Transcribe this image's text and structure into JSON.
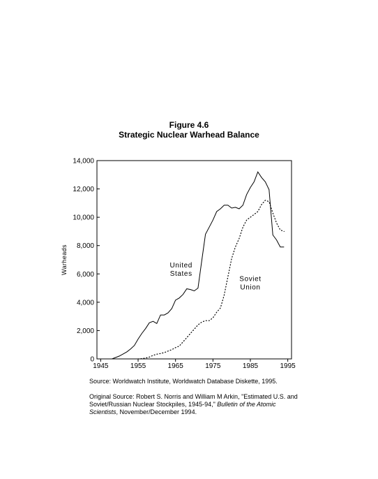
{
  "title": "Figure 4.6",
  "subtitle": "Strategic Nuclear Warhead Balance",
  "source": "Source: Worldwatch Institute, Worldwatch Database Diskette, 1995.",
  "original_source": {
    "prefix": "Original Source: Robert S. Norris and William M Arkin, \"Estimated U.S. and Soviet/Russian Nuclear Stockpiles, 1945-94,\" ",
    "journal": "Bulletin of the Atomic Scientists",
    "suffix": ", November/December 1994."
  },
  "chart_data": {
    "type": "line",
    "title": "Strategic Nuclear Warhead Balance",
    "xlabel": "",
    "ylabel": "Warheads",
    "xlim": [
      1944,
      1996
    ],
    "ylim": [
      0,
      14000
    ],
    "x_ticks": [
      1945,
      1955,
      1965,
      1975,
      1985,
      1995
    ],
    "y_ticks": [
      0,
      2000,
      4000,
      6000,
      8000,
      10000,
      12000,
      14000
    ],
    "y_tick_labels": [
      "0",
      "2,000",
      "4,000",
      "6,000",
      "8,000",
      "10,000",
      "12,000",
      "14,000"
    ],
    "grid": false,
    "legend": "none",
    "series": [
      {
        "name": "United States",
        "label_lines": [
          "United",
          "States"
        ],
        "style": "solid",
        "label_at": [
          1966.5,
          6450
        ],
        "x": [
          1948,
          1949,
          1950,
          1951,
          1952,
          1953,
          1954,
          1955,
          1956,
          1957,
          1958,
          1959,
          1960,
          1961,
          1962,
          1963,
          1964,
          1965,
          1966,
          1967,
          1968,
          1969,
          1970,
          1971,
          1972,
          1973,
          1974,
          1975,
          1976,
          1977,
          1978,
          1979,
          1980,
          1981,
          1982,
          1983,
          1984,
          1985,
          1986,
          1987,
          1988,
          1989,
          1990,
          1991,
          1992,
          1993,
          1994
        ],
        "values": [
          0,
          100,
          200,
          350,
          500,
          700,
          950,
          1400,
          1800,
          2150,
          2550,
          2650,
          2500,
          3100,
          3100,
          3250,
          3550,
          4150,
          4300,
          4550,
          4950,
          4900,
          4800,
          5000,
          6900,
          8800,
          9300,
          9800,
          10400,
          10600,
          10850,
          10850,
          10650,
          10700,
          10600,
          10850,
          11600,
          12100,
          12500,
          13200,
          12800,
          12500,
          11950,
          8750,
          8400,
          7900,
          7900
        ]
      },
      {
        "name": "Soviet Union",
        "label_lines": [
          "Soviet",
          "Union"
        ],
        "style": "dotted",
        "label_at": [
          1985,
          5500
        ],
        "x": [
          1955,
          1956,
          1957,
          1958,
          1959,
          1960,
          1961,
          1962,
          1963,
          1964,
          1965,
          1966,
          1967,
          1968,
          1969,
          1970,
          1971,
          1972,
          1973,
          1974,
          1975,
          1976,
          1977,
          1978,
          1979,
          1980,
          1981,
          1982,
          1983,
          1984,
          1985,
          1986,
          1987,
          1988,
          1989,
          1990,
          1991,
          1992,
          1993,
          1994
        ],
        "values": [
          0,
          20,
          60,
          130,
          250,
          330,
          380,
          450,
          550,
          650,
          800,
          900,
          1200,
          1500,
          1800,
          2100,
          2400,
          2600,
          2700,
          2700,
          2900,
          3300,
          3600,
          4500,
          5800,
          7100,
          7900,
          8500,
          9300,
          9800,
          10000,
          10200,
          10400,
          10900,
          11200,
          11100,
          10300,
          9600,
          9100,
          9000
        ]
      }
    ]
  }
}
